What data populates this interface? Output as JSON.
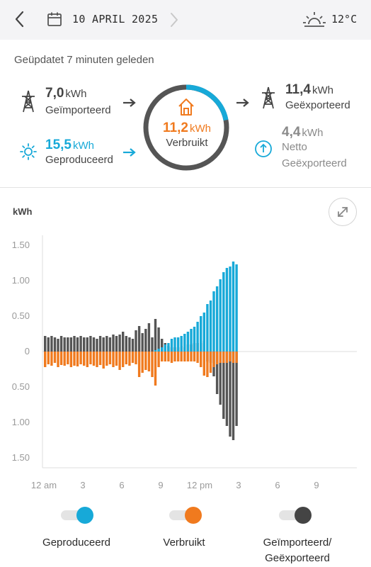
{
  "header": {
    "date": "10 APRIL 2025",
    "temperature": "12°C",
    "icons": {
      "back": "chevron-left-icon",
      "calendar": "calendar-icon",
      "next": "chevron-right-icon",
      "weather": "sunrise-icon"
    }
  },
  "updated_text": "Geüpdatet 7 minuten geleden",
  "summary": {
    "imported": {
      "value": "7,0",
      "unit": "kWh",
      "label": "Geïmporteerd"
    },
    "produced": {
      "value": "15,5",
      "unit": "kWh",
      "label": "Geproduceerd"
    },
    "consumed": {
      "value": "11,2",
      "unit": "kWh",
      "label": "Verbruikt"
    },
    "exported": {
      "value": "11,4",
      "unit": "kWh",
      "label": "Geëxporteerd"
    },
    "net": {
      "value": "4,4",
      "unit": "kWh",
      "label_line1": "Netto",
      "label_line2": "Geëxporteerd"
    },
    "ring_consumed_fraction": 0.22
  },
  "chart_data": {
    "type": "bar",
    "ylabel": "kWh",
    "y_tick_labels": [
      "1.50",
      "1.00",
      "0.50",
      "0",
      "0.50",
      "1.00",
      "1.50"
    ],
    "x_tick_labels": [
      "12 am",
      "3",
      "6",
      "9",
      "12 pm",
      "3",
      "6",
      "9"
    ],
    "ylim": [
      -1.5,
      1.5
    ],
    "grid": false,
    "colors": {
      "produced": "#17a9d8",
      "consumed": "#f07a1e",
      "grid": "#555555"
    },
    "bucket_minutes": 15,
    "series": [
      {
        "name": "Geproduceerd",
        "x_hours": [
          8.5,
          8.75,
          9,
          9.25,
          9.5,
          9.75,
          10,
          10.25,
          10.5,
          10.75,
          11,
          11.25,
          11.5,
          11.75,
          12,
          12.25,
          12.5,
          12.75,
          13,
          13.25,
          13.5,
          13.75,
          14,
          14.25,
          14.5,
          14.75
        ],
        "values": [
          0.02,
          0.04,
          0.06,
          0.1,
          0.12,
          0.18,
          0.2,
          0.2,
          0.22,
          0.25,
          0.28,
          0.32,
          0.35,
          0.42,
          0.5,
          0.55,
          0.67,
          0.72,
          0.85,
          0.92,
          1.02,
          1.12,
          1.18,
          1.2,
          1.27,
          1.23
        ]
      },
      {
        "name": "Verbruikt",
        "x_hours": [
          0,
          0.25,
          0.5,
          0.75,
          1,
          1.25,
          1.5,
          1.75,
          2,
          2.25,
          2.5,
          2.75,
          3,
          3.25,
          3.5,
          3.75,
          4,
          4.25,
          4.5,
          4.75,
          5,
          5.25,
          5.5,
          5.75,
          6,
          6.25,
          6.5,
          6.75,
          7,
          7.25,
          7.5,
          7.75,
          8,
          8.25,
          8.5,
          8.75,
          9,
          9.25,
          9.5,
          9.75,
          10,
          10.25,
          10.5,
          10.75,
          11,
          11.25,
          11.5,
          11.75,
          12,
          12.25,
          12.5,
          12.75,
          13,
          13.25,
          13.5,
          13.75,
          14,
          14.25,
          14.5,
          14.75
        ],
        "values": [
          -0.22,
          -0.18,
          -0.2,
          -0.16,
          -0.22,
          -0.19,
          -0.2,
          -0.18,
          -0.22,
          -0.2,
          -0.21,
          -0.18,
          -0.2,
          -0.22,
          -0.18,
          -0.2,
          -0.22,
          -0.19,
          -0.24,
          -0.2,
          -0.18,
          -0.22,
          -0.2,
          -0.26,
          -0.22,
          -0.18,
          -0.2,
          -0.16,
          -0.18,
          -0.36,
          -0.3,
          -0.26,
          -0.28,
          -0.36,
          -0.48,
          -0.22,
          -0.14,
          -0.14,
          -0.14,
          -0.16,
          -0.14,
          -0.14,
          -0.14,
          -0.14,
          -0.14,
          -0.14,
          -0.14,
          -0.16,
          -0.22,
          -0.34,
          -0.36,
          -0.3,
          -0.22,
          -0.18,
          -0.16,
          -0.16,
          -0.16,
          -0.14,
          -0.16,
          -0.16
        ]
      },
      {
        "name": "Geïmporteerd/Geëxporteerd",
        "x_hours": [
          0,
          0.25,
          0.5,
          0.75,
          1,
          1.25,
          1.5,
          1.75,
          2,
          2.25,
          2.5,
          2.75,
          3,
          3.25,
          3.5,
          3.75,
          4,
          4.25,
          4.5,
          4.75,
          5,
          5.25,
          5.5,
          5.75,
          6,
          6.25,
          6.5,
          6.75,
          7,
          7.25,
          7.5,
          7.75,
          8,
          8.25,
          8.5,
          8.75,
          9,
          9.25,
          9.5,
          9.75,
          10,
          10.25,
          10.5,
          10.75,
          11,
          11.25,
          11.5,
          11.75,
          12,
          12.25,
          12.5,
          12.75,
          13,
          13.25,
          13.5,
          13.75,
          14,
          14.25,
          14.5,
          14.75
        ],
        "values": [
          0.22,
          0.2,
          0.22,
          0.2,
          0.18,
          0.22,
          0.2,
          0.2,
          0.2,
          0.22,
          0.2,
          0.22,
          0.2,
          0.2,
          0.22,
          0.2,
          0.18,
          0.22,
          0.2,
          0.22,
          0.2,
          0.24,
          0.22,
          0.24,
          0.28,
          0.22,
          0.2,
          0.18,
          0.3,
          0.36,
          0.26,
          0.32,
          0.4,
          0.2,
          0.46,
          0.34,
          0.18,
          0.12,
          0.08,
          0.06,
          0.06,
          0.06,
          0.08,
          0.06,
          0.1,
          0.1,
          0.12,
          0.12,
          0.12,
          0.15,
          0.14,
          0.16,
          0.35,
          0.6,
          0.75,
          0.95,
          1.05,
          1.2,
          1.25,
          1.05
        ]
      }
    ],
    "grid_series_note_sign": "positive = imported (drawn above), mirrored below as export"
  },
  "legend": [
    {
      "label": "Geproduceerd",
      "color": "#17a9d8"
    },
    {
      "label": "Verbruikt",
      "color": "#f07a1e"
    },
    {
      "label_line1": "Geïmporteerd/",
      "label_line2": "Geëxporteerd",
      "color": "#444444"
    }
  ]
}
